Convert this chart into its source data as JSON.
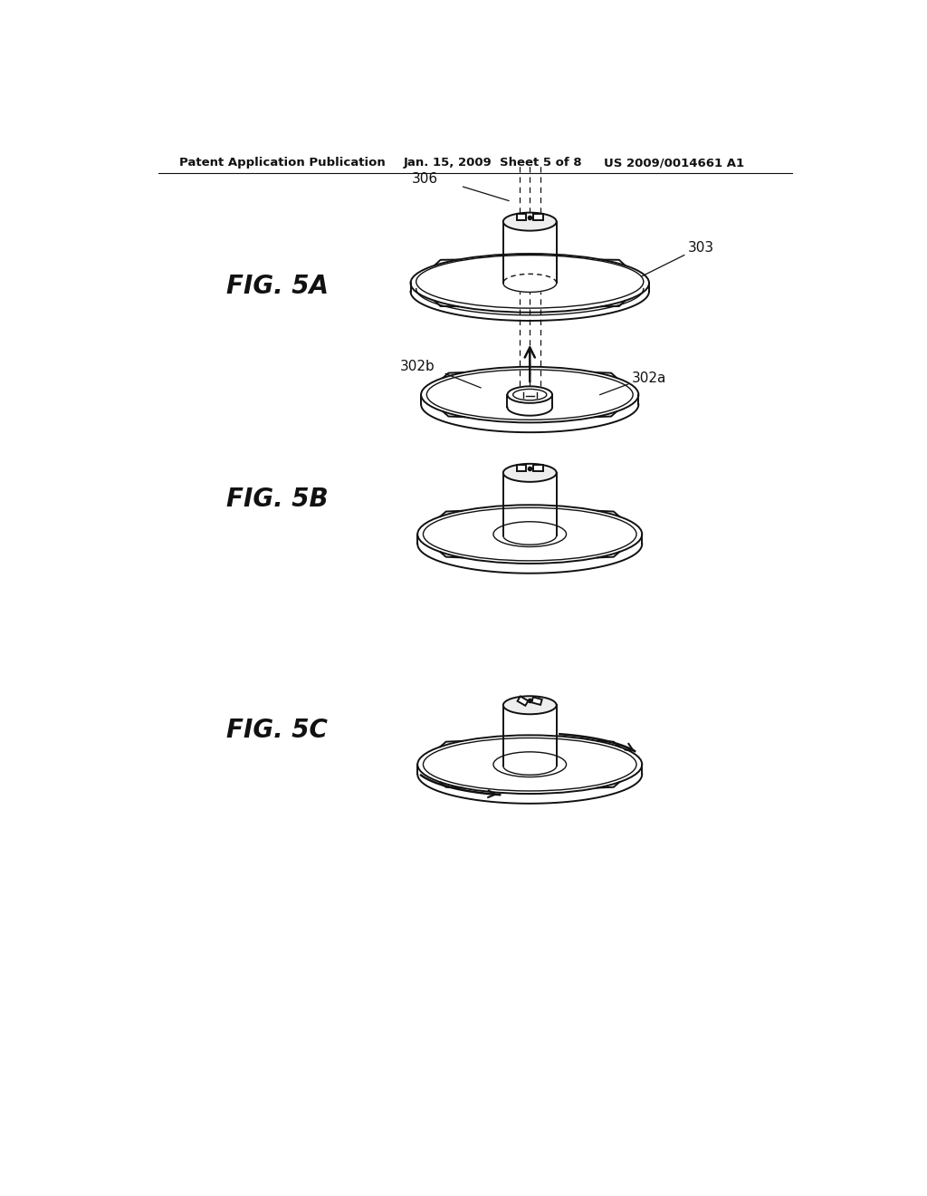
{
  "bg_color": "#ffffff",
  "line_color": "#111111",
  "header_left": "Patent Application Publication",
  "header_mid": "Jan. 15, 2009  Sheet 5 of 8",
  "header_right": "US 2009/0014661 A1",
  "fig5a_label": "FIG. 5A",
  "fig5b_label": "FIG. 5B",
  "fig5c_label": "FIG. 5C"
}
